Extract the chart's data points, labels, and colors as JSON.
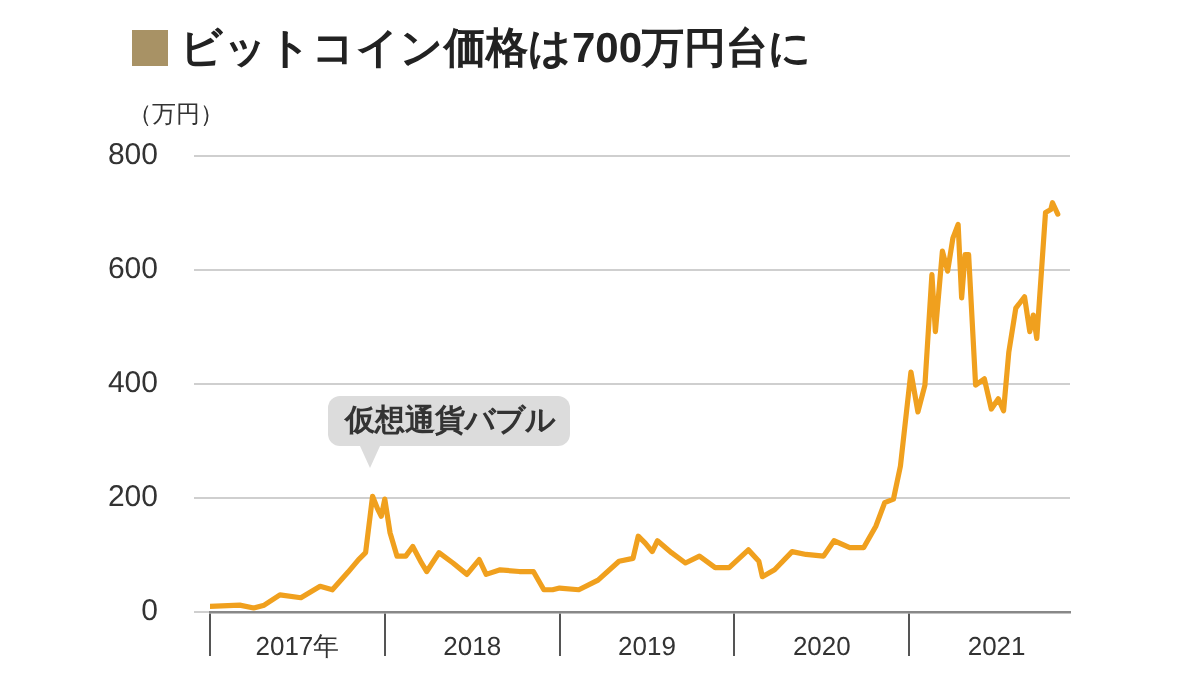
{
  "chart_data": {
    "type": "line",
    "title": "ビットコイン価格は700万円台に",
    "ylabel": "（万円）",
    "x": [
      2017.0,
      2017.17,
      2017.25,
      2017.31,
      2017.4,
      2017.52,
      2017.63,
      2017.7,
      2017.79,
      2017.85,
      2017.89,
      2017.93,
      2017.96,
      2017.98,
      2018.0,
      2018.03,
      2018.07,
      2018.12,
      2018.16,
      2018.21,
      2018.24,
      2018.31,
      2018.39,
      2018.47,
      2018.54,
      2018.58,
      2018.66,
      2018.77,
      2018.85,
      2018.91,
      2018.96,
      2019.0,
      2019.11,
      2019.22,
      2019.34,
      2019.42,
      2019.45,
      2019.49,
      2019.53,
      2019.56,
      2019.64,
      2019.72,
      2019.8,
      2019.89,
      2019.97,
      2020.08,
      2020.14,
      2020.16,
      2020.23,
      2020.33,
      2020.41,
      2020.51,
      2020.57,
      2020.66,
      2020.74,
      2020.81,
      2020.86,
      2020.91,
      2020.95,
      2021.01,
      2021.05,
      2021.09,
      2021.13,
      2021.15,
      2021.19,
      2021.22,
      2021.25,
      2021.28,
      2021.3,
      2021.32,
      2021.34,
      2021.38,
      2021.43,
      2021.47,
      2021.51,
      2021.54,
      2021.57,
      2021.61,
      2021.66,
      2021.69,
      2021.71,
      2021.73,
      2021.78,
      2021.81,
      2021.82,
      2021.85
    ],
    "series": [
      {
        "color": "#f0a01e",
        "values": [
          10,
          12,
          7,
          12,
          30,
          25,
          45,
          39,
          70,
          92,
          104,
          203,
          180,
          168,
          198,
          139,
          98,
          98,
          115,
          86,
          71,
          104,
          86,
          66,
          92,
          66,
          74,
          71,
          71,
          39,
          39,
          42,
          39,
          56,
          89,
          94,
          133,
          121,
          106,
          125,
          104,
          86,
          98,
          78,
          78,
          109,
          89,
          62,
          74,
          106,
          101,
          98,
          125,
          113,
          113,
          151,
          192,
          198,
          256,
          421,
          351,
          398,
          592,
          492,
          633,
          598,
          656,
          680,
          551,
          627,
          627,
          398,
          409,
          356,
          374,
          353,
          456,
          533,
          553,
          492,
          521,
          480,
          701,
          706,
          718,
          698
        ]
      }
    ],
    "xlim": [
      2017,
      2021.92
    ],
    "xticks": [
      {
        "value": 2017.5,
        "label": "2017年"
      },
      {
        "value": 2018.5,
        "label": "2018"
      },
      {
        "value": 2019.5,
        "label": "2019"
      },
      {
        "value": 2020.5,
        "label": "2020"
      },
      {
        "value": 2021.5,
        "label": "2021"
      }
    ],
    "ylim": [
      0,
      800
    ],
    "yticks": [
      0,
      200,
      400,
      600,
      800
    ],
    "grid": "y",
    "legend": false,
    "marker": "none",
    "line_style": "solid",
    "annotations": [
      {
        "text": "仮想通貨バブル",
        "x": 2017.93,
        "y": 203
      }
    ]
  }
}
